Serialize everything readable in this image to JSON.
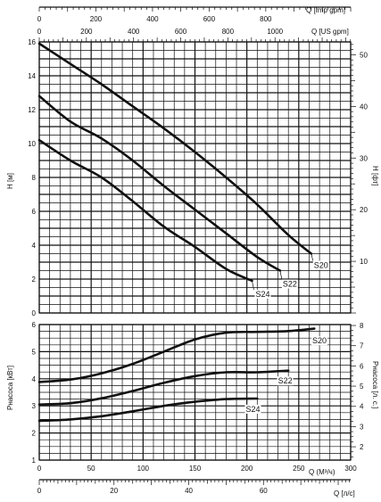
{
  "chart_data": [
    {
      "type": "line",
      "id": "head",
      "x_unit": "Q [m³/h]",
      "xlim": [
        0,
        300
      ],
      "ylabel": "H [м]",
      "ylim": [
        0,
        16
      ],
      "y_ticks": [
        0,
        2,
        4,
        6,
        8,
        10,
        12,
        14,
        16
      ],
      "y2label": "H [фт]",
      "y2lim": [
        0,
        52.49
      ],
      "y2_ticks": [
        10,
        20,
        30,
        40,
        50
      ],
      "top_axis_1": {
        "label": "Q [Imp gpm]",
        "ticks": [
          0,
          200,
          400,
          600,
          800
        ]
      },
      "top_axis_2": {
        "label": "Q [US gpm]",
        "ticks": [
          0,
          200,
          400,
          600,
          800,
          1000
        ]
      },
      "grid": true,
      "series": [
        {
          "name": "S20",
          "x": [
            0,
            30,
            60,
            90,
            120,
            150,
            180,
            210,
            240,
            262
          ],
          "y": [
            15.9,
            14.7,
            13.5,
            12.2,
            10.9,
            9.5,
            8.0,
            6.4,
            4.6,
            3.5
          ]
        },
        {
          "name": "S22",
          "x": [
            0,
            30,
            60,
            90,
            120,
            150,
            180,
            210,
            232
          ],
          "y": [
            12.8,
            11.3,
            10.3,
            9.0,
            7.5,
            6.1,
            4.7,
            3.3,
            2.5
          ]
        },
        {
          "name": "S24",
          "x": [
            0,
            30,
            60,
            90,
            120,
            150,
            180,
            205
          ],
          "y": [
            10.2,
            9.0,
            8.0,
            6.6,
            5.1,
            3.9,
            2.6,
            1.9
          ]
        }
      ]
    },
    {
      "type": "line",
      "id": "power",
      "x_unit": "Q (M³/ч)",
      "xlim": [
        0,
        300
      ],
      "x_ticks": [
        0,
        50,
        100,
        150,
        200,
        250,
        300
      ],
      "ylabel": "Рнасоса [кВт]",
      "ylim": [
        1,
        6
      ],
      "y_ticks": [
        1,
        2,
        3,
        4,
        5,
        6
      ],
      "y2label": "Рнасоса [л. с.]",
      "y2_ticks": [
        2,
        3,
        4,
        5,
        6,
        7,
        8
      ],
      "bottom_axis_2": {
        "label": "Q [л/с]",
        "ticks": [
          0,
          20,
          40,
          60
        ]
      },
      "grid": true,
      "series": [
        {
          "name": "S20",
          "x": [
            0,
            30,
            60,
            90,
            120,
            150,
            180,
            210,
            240,
            265
          ],
          "y": [
            3.88,
            3.97,
            4.2,
            4.55,
            5.0,
            5.45,
            5.7,
            5.73,
            5.76,
            5.85
          ]
        },
        {
          "name": "S22",
          "x": [
            0,
            30,
            60,
            90,
            120,
            150,
            180,
            210,
            240
          ],
          "y": [
            3.05,
            3.1,
            3.28,
            3.55,
            3.85,
            4.1,
            4.24,
            4.24,
            4.3
          ]
        },
        {
          "name": "S24",
          "x": [
            0,
            30,
            60,
            90,
            120,
            150,
            180,
            210
          ],
          "y": [
            2.45,
            2.5,
            2.62,
            2.8,
            3.0,
            3.15,
            3.25,
            3.27
          ]
        }
      ]
    }
  ]
}
